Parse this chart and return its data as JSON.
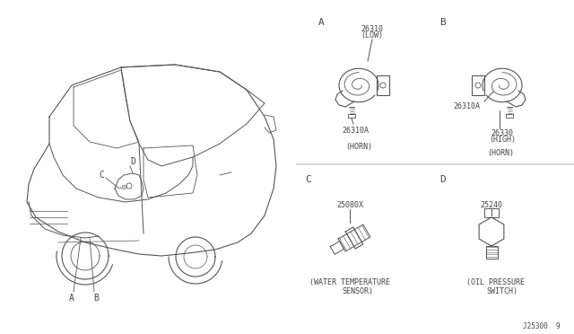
{
  "bg_color": "#ffffff",
  "line_color": "#555555",
  "text_color": "#444444",
  "font_family": "monospace",
  "fs_label": 7,
  "fs_part": 6,
  "fs_cap": 5.5,
  "fs_id": 5,
  "diagram_id": "J25300  9",
  "sec_A": {
    "label": "A",
    "part1": "26310",
    "part1b": "(LOW)",
    "part2": "26310A",
    "cap": "(HORN)"
  },
  "sec_B": {
    "label": "B",
    "part1": "26310A",
    "part2": "26330",
    "part2b": "(HIGH)",
    "cap": "(HORN)"
  },
  "sec_C": {
    "label": "C",
    "part1": "25080X",
    "cap1": "(WATER TEMPERATURE",
    "cap2": "SENSOR)"
  },
  "sec_D": {
    "label": "D",
    "part1": "25240",
    "cap1": "(OIL PRESSURE",
    "cap2": "SWITCH)"
  }
}
